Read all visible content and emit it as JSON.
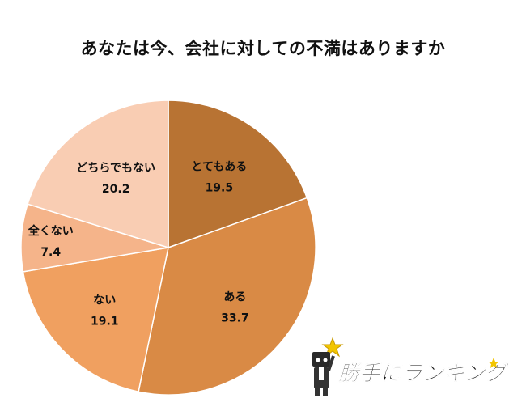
{
  "chart_data": {
    "type": "pie",
    "title": "あなたは今、会社に対しての不満はありますか",
    "slices": [
      {
        "label": "とてもある",
        "value": 19.5,
        "color": "#b87333"
      },
      {
        "label": "ある",
        "value": 33.7,
        "color": "#d98a45"
      },
      {
        "label": "ない",
        "value": 19.1,
        "color": "#f0a060"
      },
      {
        "label": "全くない",
        "value": 7.4,
        "color": "#f5b48a"
      },
      {
        "label": "どちらでもない",
        "value": 20.2,
        "color": "#f9cdb3"
      }
    ],
    "start_angle_deg": 0,
    "direction": "clockwise",
    "legend": "none"
  },
  "logo": {
    "text": "勝手にランキング",
    "icons": [
      "mascot-icon",
      "star-icon"
    ],
    "colors": {
      "text": "#111111",
      "star": "#f2c500"
    }
  }
}
